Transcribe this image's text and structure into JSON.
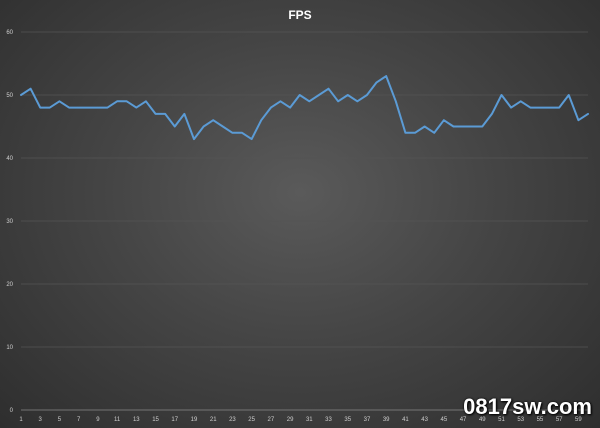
{
  "chart_data": {
    "type": "line",
    "title": "FPS",
    "xlabel": "",
    "ylabel": "",
    "x": [
      1,
      2,
      3,
      4,
      5,
      6,
      7,
      8,
      9,
      10,
      11,
      12,
      13,
      14,
      15,
      16,
      17,
      18,
      19,
      20,
      21,
      22,
      23,
      24,
      25,
      26,
      27,
      28,
      29,
      30,
      31,
      32,
      33,
      34,
      35,
      36,
      37,
      38,
      39,
      40,
      41,
      42,
      43,
      44,
      45,
      46,
      47,
      48,
      49,
      50,
      51,
      52,
      53,
      54,
      55,
      56,
      57,
      58,
      59,
      60
    ],
    "series": [
      {
        "values": [
          50,
          51,
          48,
          48,
          49,
          48,
          48,
          48,
          48,
          48,
          49,
          49,
          48,
          49,
          47,
          47,
          45,
          47,
          43,
          45,
          46,
          45,
          44,
          44,
          43,
          46,
          48,
          49,
          48,
          50,
          49,
          50,
          51,
          49,
          50,
          49,
          50,
          52,
          53,
          49,
          44,
          44,
          45,
          44,
          46,
          45,
          45,
          45,
          45,
          47,
          50,
          48,
          49,
          48,
          48,
          48,
          48,
          50,
          46,
          47
        ],
        "color": "#5b9bd5"
      }
    ],
    "ylim": [
      0,
      60
    ],
    "yticks": [
      0,
      10,
      20,
      30,
      40,
      50,
      60
    ],
    "xticks": [
      "1",
      "3",
      "5",
      "7",
      "9",
      "11",
      "13",
      "15",
      "17",
      "19",
      "21",
      "23",
      "25",
      "27",
      "29",
      "31",
      "33",
      "35",
      "37",
      "39",
      "41",
      "43",
      "45",
      "47",
      "49",
      "51",
      "53",
      "55",
      "57",
      "59"
    ],
    "grid": true,
    "legend": "none"
  },
  "watermark": {
    "text": "0817sw.com"
  }
}
